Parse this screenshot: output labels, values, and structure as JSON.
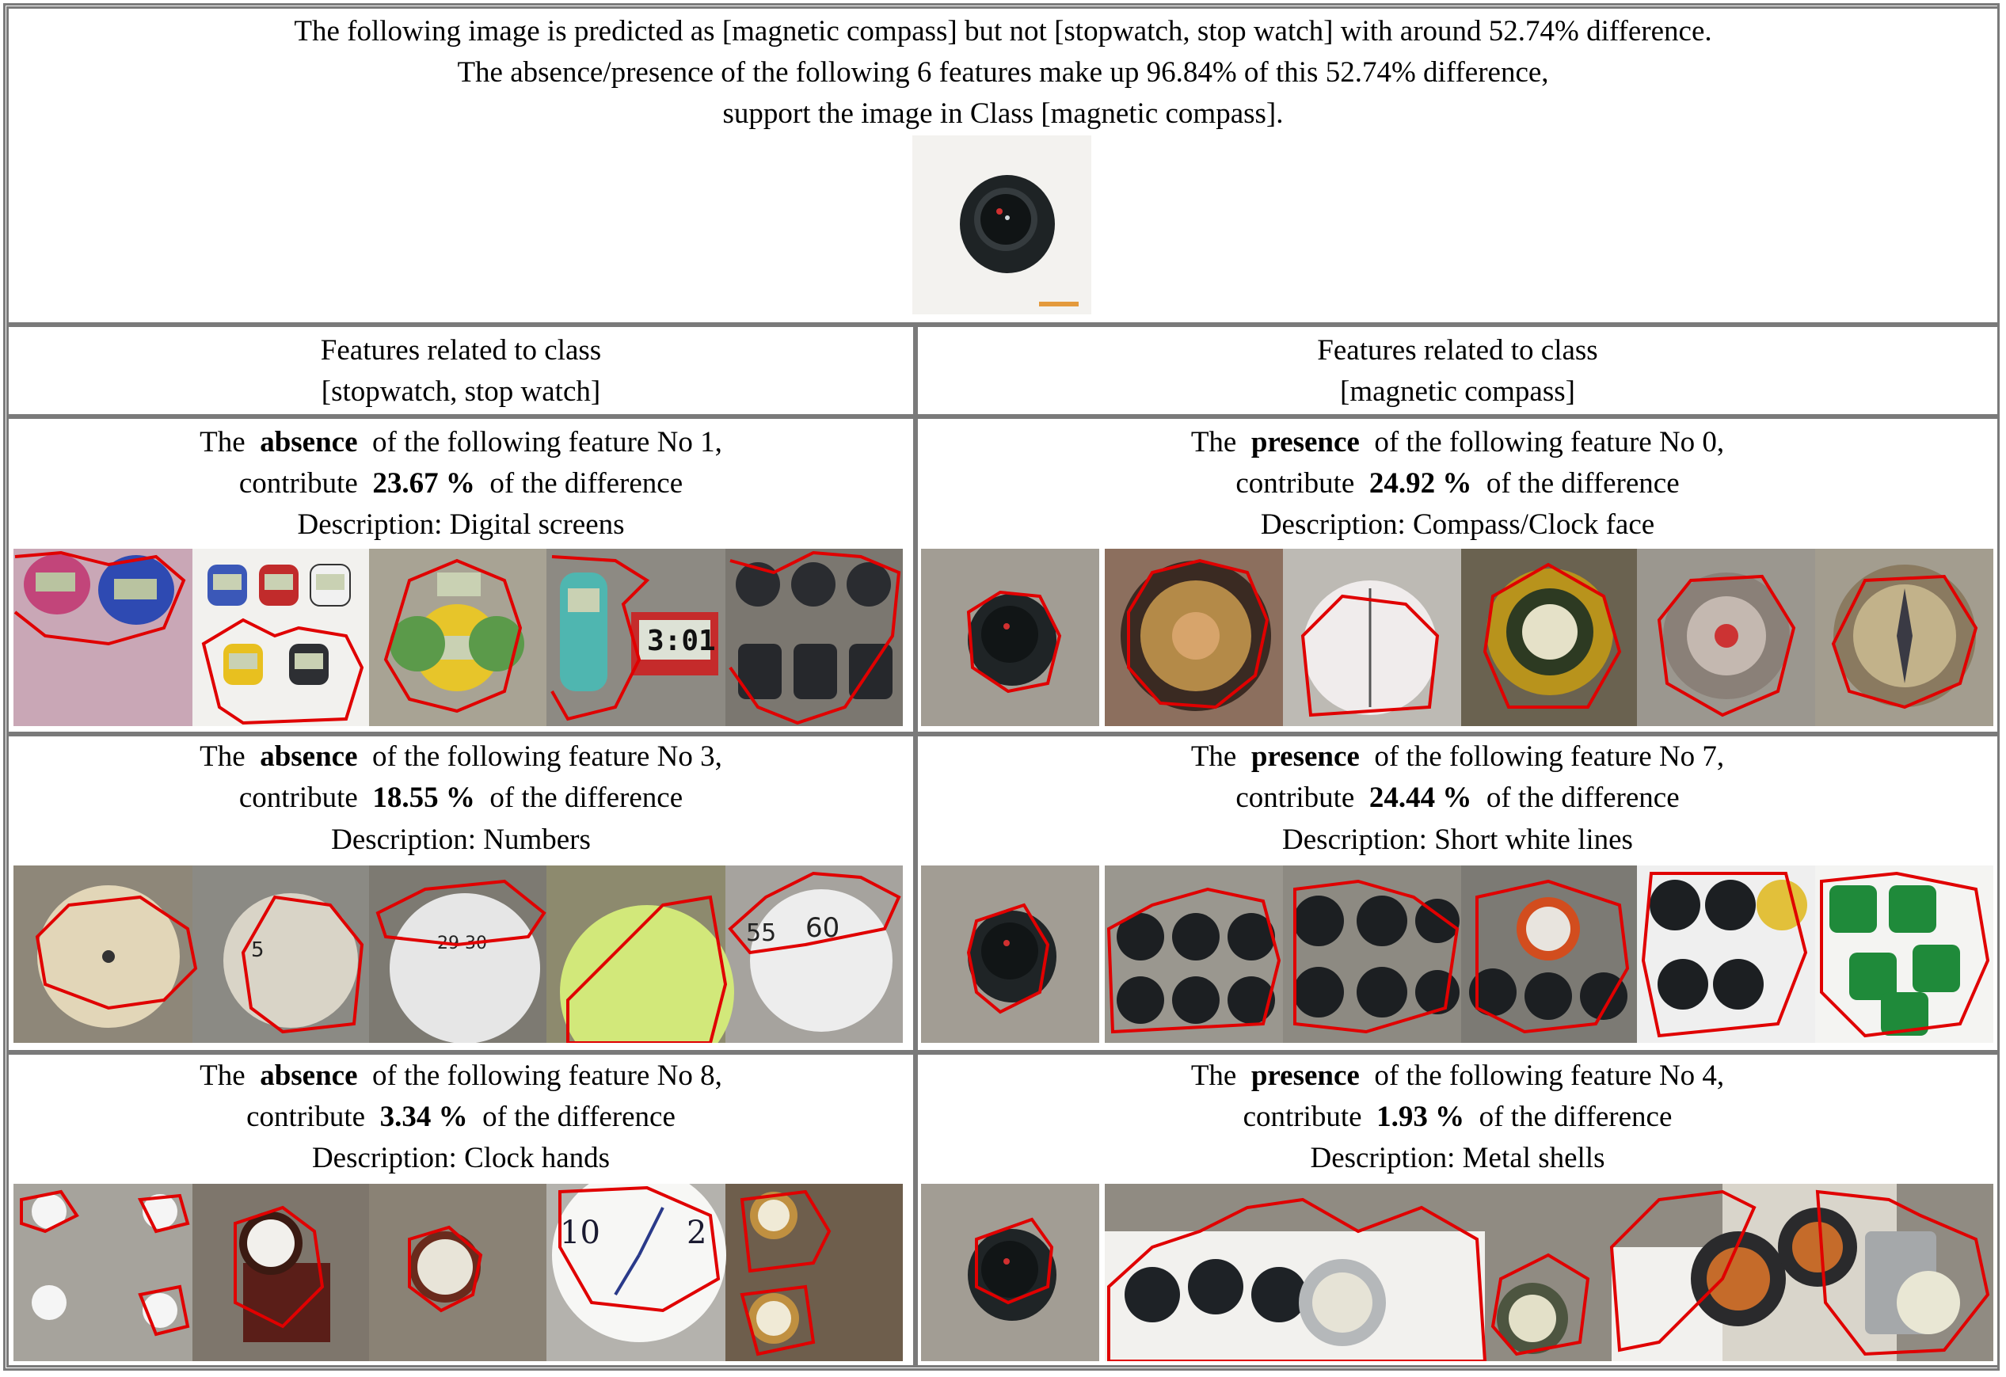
{
  "header": {
    "line1": "The following image is predicted as [magnetic compass] but not [stopwatch, stop watch] with around 52.74% difference.",
    "line2": "The absence/presence of the following 6 features make up 96.84% of this 52.74% difference,",
    "line3": "support the image in Class [magnetic compass]."
  },
  "columns": {
    "left": {
      "line1": "Features related to class",
      "line2": "[stopwatch, stop watch]"
    },
    "right": {
      "line1": "Features related to class",
      "line2": "[magnetic compass]"
    }
  },
  "features": {
    "left": [
      {
        "kind": "absence",
        "number": "1",
        "percent": "23.67 %",
        "description": "Digital screens"
      },
      {
        "kind": "absence",
        "number": "3",
        "percent": "18.55 %",
        "description": "Numbers"
      },
      {
        "kind": "absence",
        "number": "8",
        "percent": "3.34 %",
        "description": "Clock hands"
      }
    ],
    "right": [
      {
        "kind": "presence",
        "number": "0",
        "percent": "24.92 %",
        "description": "Compass/Clock face"
      },
      {
        "kind": "presence",
        "number": "7",
        "percent": "24.44 %",
        "description": "Short white lines"
      },
      {
        "kind": "presence",
        "number": "4",
        "percent": "1.93 %",
        "description": "Metal shells"
      }
    ]
  },
  "phrases": {
    "the": "The",
    "of_feature": "of the following feature No",
    "contribute": "contribute",
    "of_difference": "of the difference",
    "description": "Description:"
  },
  "colors": {
    "grid_border": "#7a7a7a",
    "outline_red": "#e00000",
    "background": "#ffffff"
  }
}
